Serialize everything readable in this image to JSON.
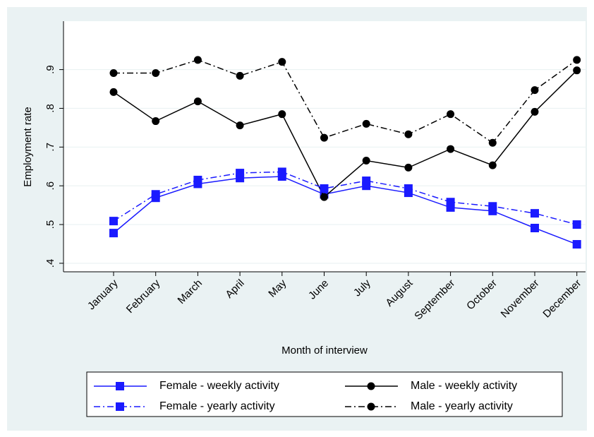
{
  "chart_data": {
    "type": "line",
    "xlabel": "Month of interview",
    "ylabel": "Employment rate",
    "categories": [
      "January",
      "February",
      "March",
      "April",
      "May",
      "June",
      "July",
      "August",
      "September",
      "October",
      "November",
      "December"
    ],
    "series": [
      {
        "name": "Female - weekly activity",
        "color": "#1a1aff",
        "marker": "square",
        "dash": "solid",
        "values": [
          0.478,
          0.569,
          0.605,
          0.62,
          0.624,
          0.578,
          0.6,
          0.582,
          0.544,
          0.535,
          0.491,
          0.449
        ]
      },
      {
        "name": "Male - weekly activity",
        "color": "#000000",
        "marker": "circle",
        "dash": "solid",
        "values": [
          0.842,
          0.767,
          0.818,
          0.756,
          0.785,
          0.571,
          0.665,
          0.647,
          0.695,
          0.653,
          0.791,
          0.898
        ]
      },
      {
        "name": "Female - yearly activity",
        "color": "#1a1aff",
        "marker": "square",
        "dash": "dashdot",
        "values": [
          0.509,
          0.578,
          0.615,
          0.633,
          0.636,
          0.593,
          0.613,
          0.593,
          0.558,
          0.547,
          0.529,
          0.5
        ]
      },
      {
        "name": "Male - yearly activity",
        "color": "#000000",
        "marker": "circle",
        "dash": "dashdot",
        "values": [
          0.891,
          0.891,
          0.925,
          0.884,
          0.92,
          0.724,
          0.76,
          0.733,
          0.785,
          0.711,
          0.847,
          0.925
        ]
      }
    ],
    "ylim": [
      0.378,
      1.025
    ],
    "yticks": [
      {
        "value": 0.4,
        "label": ".4"
      },
      {
        "value": 0.5,
        "label": ".5"
      },
      {
        "value": 0.6,
        "label": ".6"
      },
      {
        "value": 0.7,
        "label": ".7"
      },
      {
        "value": 0.8,
        "label": ".8"
      },
      {
        "value": 0.9,
        "label": ".9"
      }
    ],
    "grid": true,
    "legend": "bottom"
  }
}
